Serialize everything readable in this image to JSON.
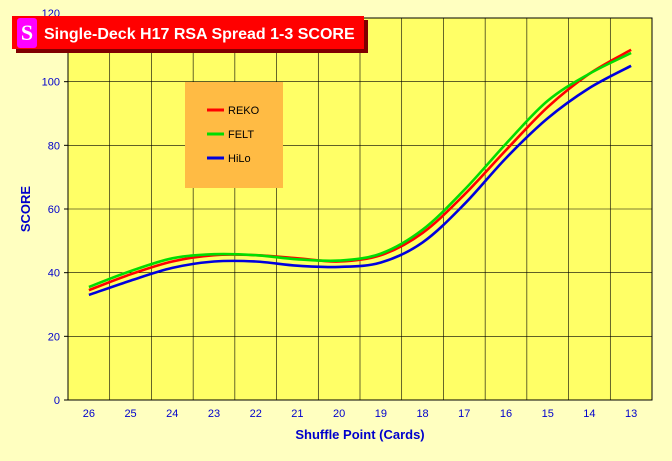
{
  "chart_data": {
    "type": "line",
    "title": "Single-Deck H17 RSA Spread 1-3 SCORE",
    "logo_text": "S",
    "xlabel": "Shuffle Point (Cards)",
    "ylabel": "SCORE",
    "categories": [
      "26",
      "25",
      "24",
      "23",
      "22",
      "21",
      "20",
      "19",
      "18",
      "17",
      "16",
      "15",
      "14",
      "13"
    ],
    "y_ticks": [
      "0",
      "20",
      "40",
      "60",
      "80",
      "100"
    ],
    "y_top_tick_partial": "120",
    "ylim": [
      0,
      120
    ],
    "grid": true,
    "legend_position": "upper-left",
    "series": [
      {
        "name": "REKO",
        "color": "#ff0000",
        "values": [
          34.5,
          39.5,
          43.5,
          45.5,
          45.5,
          44.5,
          43.5,
          45.5,
          52.5,
          64.5,
          78.5,
          92.0,
          102.5,
          110.0
        ]
      },
      {
        "name": "FELT",
        "color": "#00dd00",
        "values": [
          35.5,
          40.5,
          44.5,
          45.8,
          45.5,
          44.2,
          43.8,
          46.0,
          53.5,
          66.0,
          80.5,
          94.0,
          102.5,
          109.0
        ]
      },
      {
        "name": "HiLo",
        "color": "#0000dd",
        "values": [
          33.0,
          37.5,
          41.5,
          43.5,
          43.5,
          42.2,
          41.8,
          43.2,
          49.5,
          61.5,
          76.0,
          88.5,
          98.0,
          105.0
        ]
      }
    ],
    "colors": {
      "background": "#ffffc0",
      "plot_background": "#ffff66",
      "grid": "#000000",
      "title_box": "#ff0000",
      "legend_box": "#ffbb44",
      "axis_text": "#0000cc",
      "logo": "#ff00ff"
    }
  }
}
